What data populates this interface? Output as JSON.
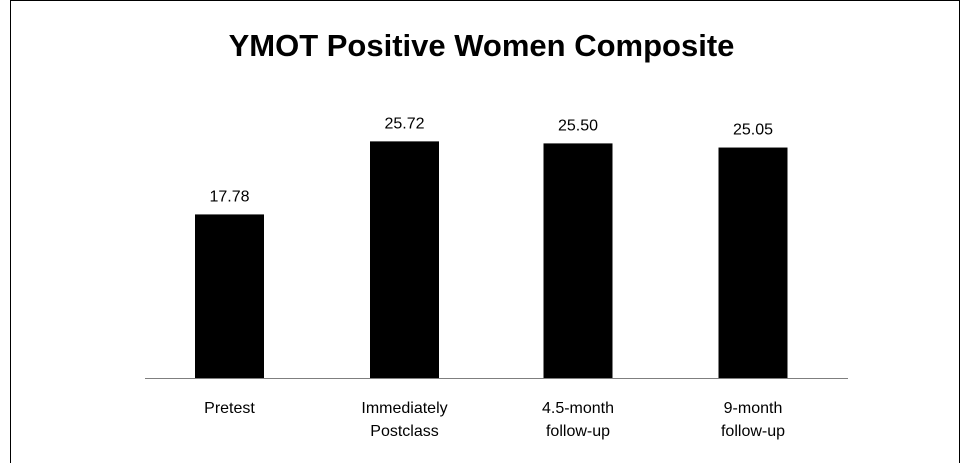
{
  "chart_data": {
    "type": "bar",
    "title": "YMOT Positive Women Composite",
    "categories": [
      [
        "Pretest"
      ],
      [
        "Immediately",
        "Postclass"
      ],
      [
        "4.5-month",
        "follow-up"
      ],
      [
        "9-month",
        "follow-up"
      ]
    ],
    "values": [
      17.78,
      25.72,
      25.5,
      25.05
    ],
    "data_labels": [
      "17.78",
      "25.72",
      "25.50",
      "25.05"
    ],
    "ylim": [
      0,
      28
    ],
    "xlabel": "",
    "ylabel": "",
    "grid": false,
    "legend": "none",
    "bar_color": "#000000"
  }
}
